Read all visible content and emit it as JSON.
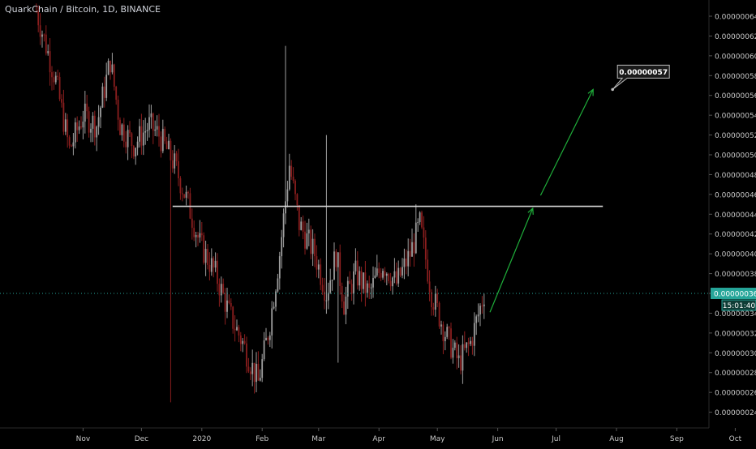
{
  "header": {
    "symbol_title": "QuarkChain / Bitcoin, 1D, BINANCE"
  },
  "colors": {
    "background": "#000000",
    "up_candle": "#9e9e9e",
    "down_candle": "#8b1e1e",
    "resistance_line": "#d8d8d8",
    "arrow": "#1fae3a",
    "current_price_line": "#26a69a",
    "price_badge": "#26a69a",
    "axis_text": "#c8c8c8"
  },
  "chart_data": {
    "type": "candlestick",
    "title": "QuarkChain / Bitcoin, 1D, BINANCE",
    "y_axis": {
      "position": "right",
      "ylim": [
        2.3e-07,
        6.5e-07
      ],
      "ticks": [
        "0.00000064",
        "0.00000062",
        "0.00000060",
        "0.00000058",
        "0.00000056",
        "0.00000054",
        "0.00000052",
        "0.00000050",
        "0.00000048",
        "0.00000046",
        "0.00000044",
        "0.00000042",
        "0.00000040",
        "0.00000038",
        "0.00000036",
        "0.00000034",
        "0.00000032",
        "0.00000030",
        "0.00000028",
        "0.00000026",
        "0.00000024"
      ]
    },
    "x_axis": {
      "ticks": [
        "Nov",
        "Dec",
        "2020",
        "Feb",
        "Mar",
        "Apr",
        "May",
        "Jun",
        "Jul",
        "Aug",
        "Sep",
        "Oct"
      ]
    },
    "price_path": [
      [
        "2019-10-08",
        6.45e-07
      ],
      [
        "2019-10-18",
        5.75e-07
      ],
      [
        "2019-10-25",
        5.05e-07
      ],
      [
        "2019-11-01",
        5.4e-07
      ],
      [
        "2019-11-08",
        5.3e-07
      ],
      [
        "2019-11-15",
        5.95e-07
      ],
      [
        "2019-11-20",
        5.3e-07
      ],
      [
        "2019-11-27",
        5.1e-07
      ],
      [
        "2019-12-05",
        5.3e-07
      ],
      [
        "2019-12-10",
        5.2e-07
      ],
      [
        "2019-12-18",
        4.9e-07
      ],
      [
        "2019-12-25",
        4.5e-07
      ],
      [
        "2019-12-31",
        4.1e-07
      ],
      [
        "2020-01-08",
        3.8e-07
      ],
      [
        "2020-01-15",
        3.4e-07
      ],
      [
        "2020-01-22",
        3.1e-07
      ],
      [
        "2020-01-30",
        2.7e-07
      ],
      [
        "2020-02-05",
        3.3e-07
      ],
      [
        "2020-02-10",
        4e-07
      ],
      [
        "2020-02-15",
        4.9e-07
      ],
      [
        "2020-02-20",
        4.3e-07
      ],
      [
        "2020-02-28",
        4e-07
      ],
      [
        "2020-03-05",
        3.6e-07
      ],
      [
        "2020-03-10",
        4e-07
      ],
      [
        "2020-03-14",
        3.5e-07
      ],
      [
        "2020-03-20",
        3.8e-07
      ],
      [
        "2020-03-27",
        3.6e-07
      ],
      [
        "2020-04-03",
        3.9e-07
      ],
      [
        "2020-04-10",
        3.7e-07
      ],
      [
        "2020-04-17",
        4e-07
      ],
      [
        "2020-04-22",
        4.3e-07
      ],
      [
        "2020-04-28",
        3.6e-07
      ],
      [
        "2020-05-05",
        3.2e-07
      ],
      [
        "2020-05-12",
        2.9e-07
      ],
      [
        "2020-05-18",
        3.1e-07
      ],
      [
        "2020-05-25",
        3.6e-07
      ]
    ],
    "spikes": [
      {
        "date": "2019-12-16",
        "low": 2.5e-07
      },
      {
        "date": "2020-02-13",
        "high": 6.1e-07
      },
      {
        "date": "2020-03-05",
        "high": 5.2e-07
      },
      {
        "date": "2020-03-11",
        "low": 2.9e-07
      },
      {
        "date": "2020-04-20",
        "high": 4.5e-07
      }
    ],
    "resistance_line": {
      "price": 4.48e-07,
      "from": "2019-12-17",
      "to": "2020-07-25"
    },
    "arrows": [
      {
        "from": [
          "2020-05-28",
          3.41e-07
        ],
        "to": [
          "2020-06-19",
          4.46e-07
        ]
      },
      {
        "from": [
          "2020-06-23",
          4.59e-07
        ],
        "to": [
          "2020-07-20",
          5.66e-07
        ]
      }
    ],
    "callout": {
      "label": "0.00000057",
      "anchor": [
        "2020-07-30",
        5.66e-07
      ]
    },
    "current_price": {
      "value": "0.00000036",
      "countdown": "15:01:40"
    }
  }
}
